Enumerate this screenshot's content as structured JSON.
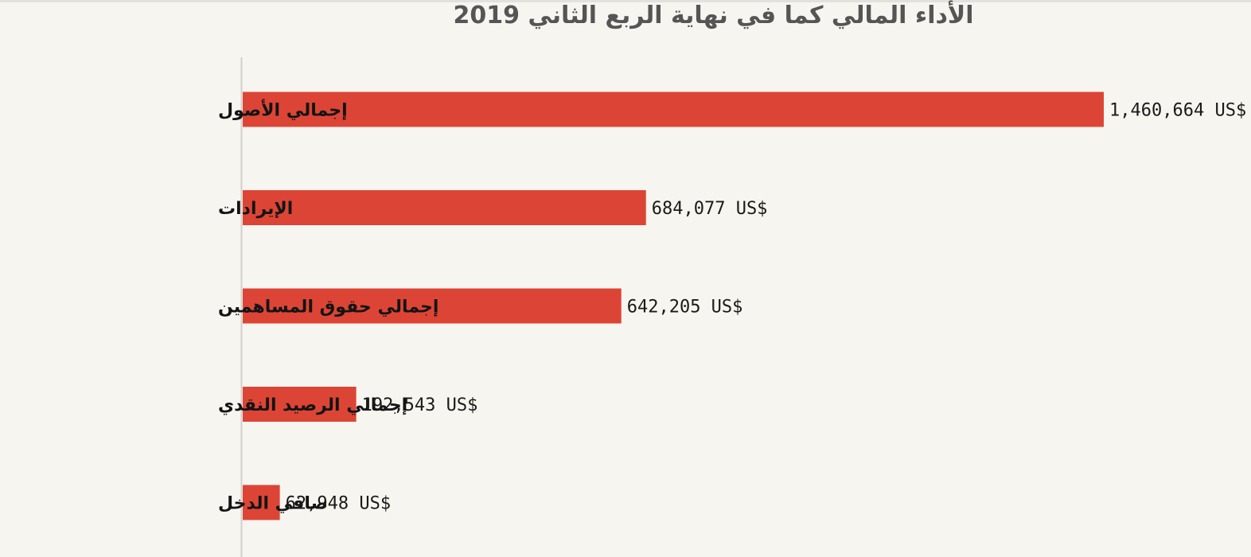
{
  "chart_data": {
    "type": "bar",
    "orientation": "horizontal",
    "title": "الأداء المالي كما في نهاية الربع الثاني 2019",
    "categories": [
      "إجمالي الأصول",
      "الإيرادات",
      "إجمالي حقوق المساهمين",
      "إجمالي الرصيد النقدي",
      "صافي الدخل"
    ],
    "values": [
      1460664,
      684077,
      642205,
      192543,
      62948
    ],
    "value_labels": [
      "1,460,664 US$",
      "684,077 US$",
      "642,205 US$",
      "192,543 US$",
      "62,948 US$"
    ],
    "xlim": [
      0,
      1460664
    ],
    "bar_color": "#dc4535",
    "grid": false,
    "legend": "none"
  }
}
